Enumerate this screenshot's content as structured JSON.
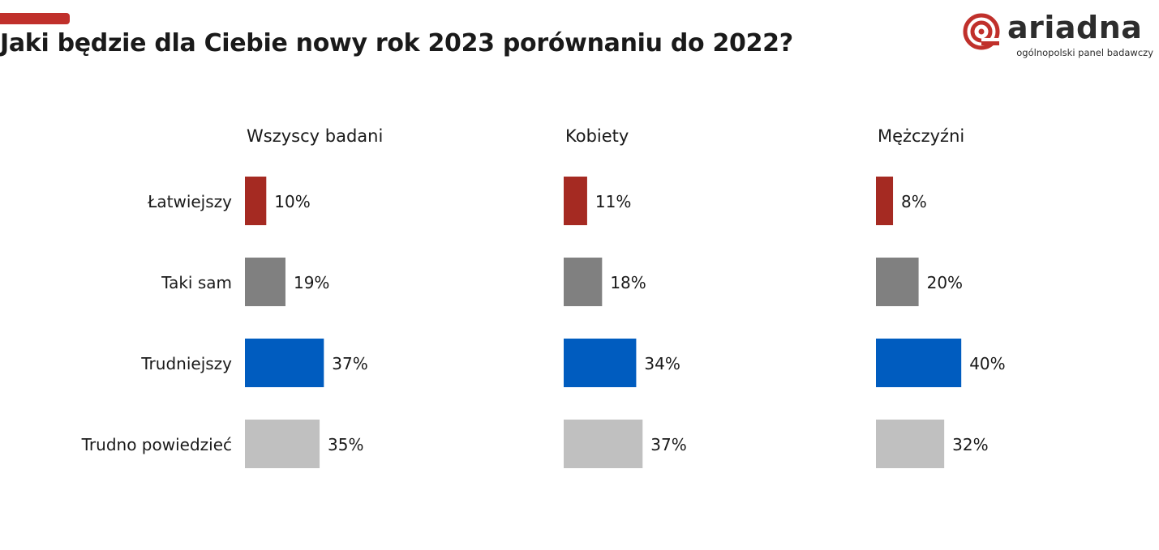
{
  "header": {
    "title": "Jaki będzie dla Ciebie nowy rok 2023 porównaniu do 2022?",
    "accent_color": "#c0302b"
  },
  "logo": {
    "word": "ariadna",
    "tagline": "ogólnopolski panel badawczy",
    "icon": "ariadna-spiral-logo"
  },
  "chart_data": {
    "type": "bar",
    "orientation": "horizontal",
    "title": "Jaki będzie dla Ciebie nowy rok 2023 porównaniu do 2022?",
    "categories": [
      "Łatwiejszy",
      "Taki sam",
      "Trudniejszy",
      "Trudno powiedzieć"
    ],
    "category_colors": [
      "#a52a22",
      "#808080",
      "#005cbf",
      "#c0c0c0"
    ],
    "value_suffix": "%",
    "xlim": [
      0,
      100
    ],
    "grid": false,
    "panels": [
      {
        "name": "Wszyscy badani",
        "values": [
          10,
          19,
          37,
          35
        ]
      },
      {
        "name": "Kobiety",
        "values": [
          11,
          18,
          34,
          37
        ]
      },
      {
        "name": "Mężczyźni",
        "values": [
          8,
          20,
          40,
          32
        ]
      }
    ]
  }
}
